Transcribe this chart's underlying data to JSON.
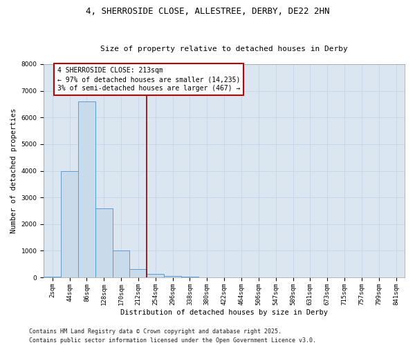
{
  "title_line1": "4, SHERROSIDE CLOSE, ALLESTREE, DERBY, DE22 2HN",
  "title_line2": "Size of property relative to detached houses in Derby",
  "xlabel": "Distribution of detached houses by size in Derby",
  "ylabel": "Number of detached properties",
  "bar_labels": [
    "2sqm",
    "44sqm",
    "86sqm",
    "128sqm",
    "170sqm",
    "212sqm",
    "254sqm",
    "296sqm",
    "338sqm",
    "380sqm",
    "422sqm",
    "464sqm",
    "506sqm",
    "547sqm",
    "589sqm",
    "631sqm",
    "673sqm",
    "715sqm",
    "757sqm",
    "799sqm",
    "841sqm"
  ],
  "bar_values": [
    20,
    4000,
    6600,
    2600,
    1000,
    300,
    130,
    50,
    20,
    0,
    0,
    0,
    0,
    0,
    0,
    0,
    0,
    0,
    0,
    0,
    0
  ],
  "bar_color": "#c9daea",
  "bar_edge_color": "#5b9bd5",
  "vline_x_index": 5.5,
  "vline_color": "#8b0000",
  "annotation_text": "4 SHERROSIDE CLOSE: 213sqm\n← 97% of detached houses are smaller (14,235)\n3% of semi-detached houses are larger (467) →",
  "annotation_box_facecolor": "#ffffff",
  "annotation_box_edgecolor": "#c00000",
  "ylim": [
    0,
    8000
  ],
  "yticks": [
    0,
    1000,
    2000,
    3000,
    4000,
    5000,
    6000,
    7000,
    8000
  ],
  "grid_color": "#c8d8ea",
  "background_color": "#dce6f1",
  "plot_bg_color": "#dce6f1",
  "footer_line1": "Contains HM Land Registry data © Crown copyright and database right 2025.",
  "footer_line2": "Contains public sector information licensed under the Open Government Licence v3.0.",
  "title_fontsize": 9,
  "subtitle_fontsize": 8,
  "axis_label_fontsize": 7.5,
  "tick_fontsize": 6.5,
  "annotation_fontsize": 7,
  "footer_fontsize": 6
}
